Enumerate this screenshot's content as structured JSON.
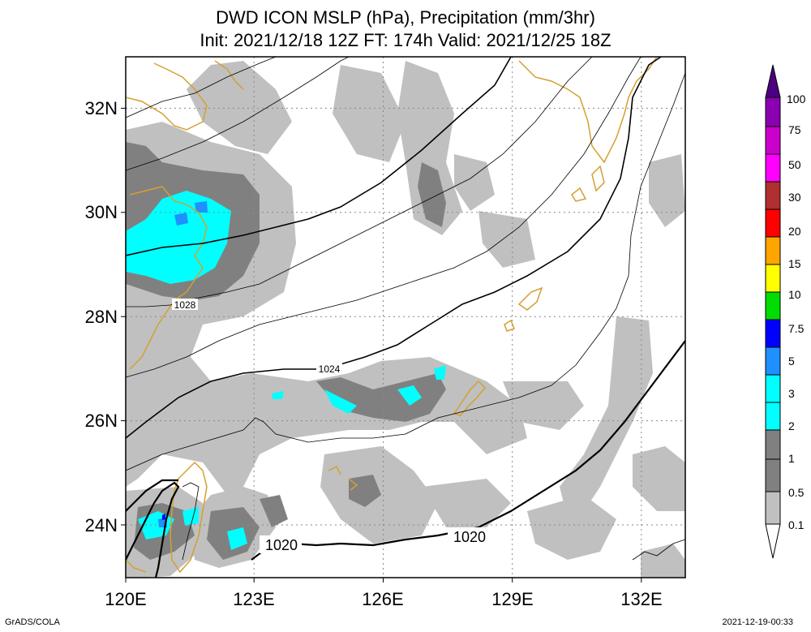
{
  "title": {
    "line1": "DWD ICON MSLP (hPa), Precipitation (mm/3hr)",
    "line2": "Init: 2021/12/18 12Z  FT: 174h  Valid: 2021/12/25 18Z"
  },
  "axes": {
    "lon_labels": [
      "120E",
      "123E",
      "126E",
      "129E",
      "132E"
    ],
    "lat_labels": [
      "32N",
      "30N",
      "28N",
      "26N",
      "24N"
    ],
    "lon_range": [
      120,
      133
    ],
    "lat_range": [
      23,
      33
    ],
    "grid": "dotted"
  },
  "isobar_labels": [
    "1028",
    "1024",
    "1020",
    "1020"
  ],
  "colorbar": {
    "levels": [
      "0.1",
      "0.5",
      "1",
      "2",
      "3",
      "5",
      "7.5",
      "10",
      "15",
      "20",
      "30",
      "50",
      "75",
      "100"
    ],
    "colors": [
      "#ffffff",
      "#c0c0c0",
      "#808080",
      "#00ffff",
      "#1e90ff",
      "#0000ff",
      "#00dd00",
      "#ffff00",
      "#ffa500",
      "#ff0000",
      "#b03030",
      "#ff00ff",
      "#cc00cc",
      "#8b00b0",
      "#4b0082"
    ]
  },
  "colors": {
    "coastline": "#d4a030",
    "isobar": "#000000",
    "grid": "#888888"
  },
  "footer": {
    "left": "GrADS/COLA",
    "right": "2021-12-19-00:33"
  }
}
